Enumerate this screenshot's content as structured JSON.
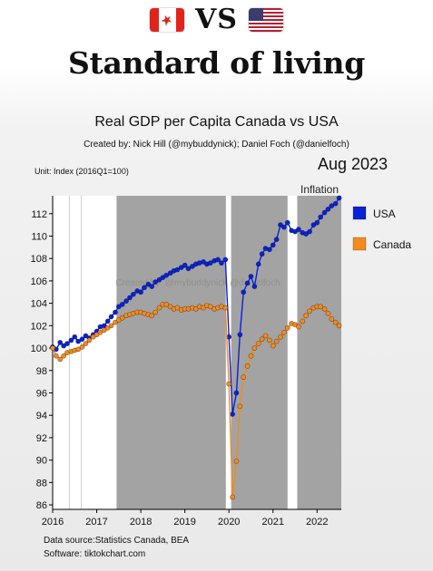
{
  "header": {
    "left_flag": "canada-flag",
    "right_flag": "usa-flag",
    "vs": "VS",
    "title": "Standard of living"
  },
  "chart": {
    "title": "Real GDP per Capita Canada vs USA",
    "credit": "Created by: Nick Hill (@mybuddynick); Daniel Foch (@danielfoch)",
    "unit": "Unit: Index (2016Q1=100)",
    "date": "Aug 2023",
    "annotation": "Inflation",
    "watermark": "Created by: @mybuddynick @danielfoch"
  },
  "footer": {
    "source": "Data source:Statistics Canada, BEA",
    "software": "Software: tiktokchart.com"
  },
  "chart_data": {
    "type": "line",
    "xlim": [
      2016,
      2022.55
    ],
    "ylim": [
      85.6,
      113.6
    ],
    "x_ticks": [
      "2016",
      "2017",
      "2018",
      "2019",
      "2020",
      "2021",
      "2022"
    ],
    "y_ticks": [
      86,
      88,
      90,
      92,
      94,
      96,
      98,
      100,
      102,
      104,
      106,
      108,
      110,
      112
    ],
    "shaded_periods": [
      [
        2017.45,
        2019.93
      ],
      [
        2020.05,
        2021.33
      ],
      [
        2021.55,
        2022.55
      ]
    ],
    "vertical_lines": [
      2016.38,
      2016.65
    ],
    "grid": false,
    "legend_position": "right",
    "series": [
      {
        "name": "USA",
        "color": "#0a22d6",
        "x": [
          2016.0,
          2016.08,
          2016.17,
          2016.25,
          2016.33,
          2016.42,
          2016.5,
          2016.58,
          2016.67,
          2016.75,
          2016.83,
          2016.92,
          2017.0,
          2017.08,
          2017.17,
          2017.25,
          2017.33,
          2017.42,
          2017.5,
          2017.58,
          2017.67,
          2017.75,
          2017.83,
          2017.92,
          2018.0,
          2018.08,
          2018.17,
          2018.25,
          2018.33,
          2018.42,
          2018.5,
          2018.58,
          2018.67,
          2018.75,
          2018.83,
          2018.92,
          2019.0,
          2019.08,
          2019.17,
          2019.25,
          2019.33,
          2019.42,
          2019.5,
          2019.58,
          2019.67,
          2019.75,
          2019.83,
          2019.92,
          2020.0,
          2020.08,
          2020.17,
          2020.25,
          2020.33,
          2020.42,
          2020.5,
          2020.58,
          2020.67,
          2020.75,
          2020.83,
          2020.92,
          2021.0,
          2021.08,
          2021.17,
          2021.25,
          2021.33,
          2021.42,
          2021.5,
          2021.58,
          2021.67,
          2021.75,
          2021.83,
          2021.92,
          2022.0,
          2022.08,
          2022.17,
          2022.25,
          2022.33,
          2022.42,
          2022.5
        ],
        "values": [
          100.1,
          99.9,
          100.5,
          100.2,
          100.4,
          100.7,
          101.0,
          100.6,
          100.8,
          101.1,
          100.9,
          101.2,
          101.5,
          101.9,
          102.0,
          102.4,
          102.8,
          103.2,
          103.7,
          103.9,
          104.2,
          104.5,
          104.8,
          105.1,
          105.0,
          105.4,
          105.7,
          105.5,
          105.9,
          106.1,
          106.3,
          106.5,
          106.7,
          106.9,
          107.0,
          107.2,
          107.4,
          107.1,
          107.3,
          107.5,
          107.6,
          107.7,
          107.5,
          107.6,
          107.8,
          107.9,
          107.6,
          107.9,
          101.0,
          94.1,
          96.0,
          101.2,
          105.0,
          105.8,
          106.4,
          105.5,
          107.5,
          108.4,
          108.9,
          108.8,
          109.2,
          109.7,
          111.0,
          110.8,
          111.2,
          110.5,
          110.4,
          110.6,
          110.3,
          110.2,
          110.4,
          111.0,
          111.2,
          111.7,
          112.1,
          112.4,
          112.7,
          112.9,
          113.4
        ]
      },
      {
        "name": "Canada",
        "color": "#f28a1e",
        "x": [
          2016.0,
          2016.08,
          2016.17,
          2016.25,
          2016.33,
          2016.42,
          2016.5,
          2016.58,
          2016.67,
          2016.75,
          2016.83,
          2016.92,
          2017.0,
          2017.08,
          2017.17,
          2017.25,
          2017.33,
          2017.42,
          2017.5,
          2017.58,
          2017.67,
          2017.75,
          2017.83,
          2017.92,
          2018.0,
          2018.08,
          2018.17,
          2018.25,
          2018.33,
          2018.42,
          2018.5,
          2018.58,
          2018.67,
          2018.75,
          2018.83,
          2018.92,
          2019.0,
          2019.08,
          2019.17,
          2019.25,
          2019.33,
          2019.42,
          2019.5,
          2019.58,
          2019.67,
          2019.75,
          2019.83,
          2019.92,
          2020.0,
          2020.08,
          2020.17,
          2020.25,
          2020.33,
          2020.42,
          2020.5,
          2020.58,
          2020.67,
          2020.75,
          2020.83,
          2020.92,
          2021.0,
          2021.08,
          2021.17,
          2021.25,
          2021.33,
          2021.42,
          2021.5,
          2021.58,
          2021.67,
          2021.75,
          2021.83,
          2021.92,
          2022.0,
          2022.08,
          2022.17,
          2022.25,
          2022.33,
          2022.42,
          2022.5
        ],
        "values": [
          100.0,
          99.3,
          99.0,
          99.3,
          99.6,
          99.7,
          99.8,
          99.9,
          100.1,
          100.4,
          100.7,
          101.0,
          101.2,
          101.4,
          101.6,
          101.8,
          102.0,
          102.3,
          102.5,
          102.7,
          102.9,
          103.0,
          103.1,
          103.2,
          103.2,
          103.1,
          103.0,
          102.9,
          103.2,
          103.6,
          103.9,
          103.9,
          103.7,
          103.5,
          103.6,
          103.4,
          103.5,
          103.5,
          103.6,
          103.5,
          103.7,
          103.6,
          103.8,
          103.7,
          103.5,
          103.6,
          103.7,
          103.6,
          96.8,
          86.7,
          89.9,
          94.8,
          97.4,
          98.4,
          99.3,
          100.0,
          100.4,
          100.8,
          101.1,
          100.7,
          100.2,
          100.6,
          101.0,
          101.4,
          101.8,
          102.2,
          102.1,
          101.9,
          102.4,
          102.9,
          103.3,
          103.6,
          103.7,
          103.7,
          103.5,
          103.1,
          102.6,
          102.3,
          102.0
        ]
      }
    ]
  }
}
